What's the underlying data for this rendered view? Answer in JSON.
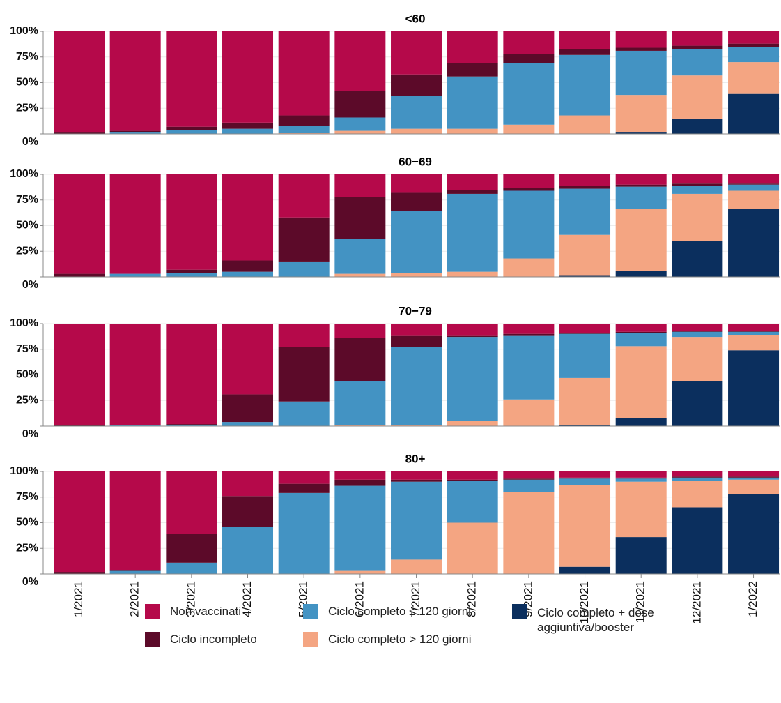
{
  "chart_data": [
    {
      "type": "bar",
      "stacked": true,
      "title": "<60",
      "ylim": [
        0,
        100
      ],
      "grid": true,
      "yticks": [
        {
          "value": 0,
          "label": "0%"
        },
        {
          "value": 25,
          "label": "25%"
        },
        {
          "value": 50,
          "label": "50%"
        },
        {
          "value": 75,
          "label": "75%"
        },
        {
          "value": 100,
          "label": "100%"
        }
      ],
      "series": [
        {
          "color": "#b5094a",
          "values": [
            98,
            97,
            93,
            89,
            82,
            58,
            42,
            31,
            22,
            17,
            16,
            14,
            12
          ]
        },
        {
          "color": "#5c0a29",
          "values": [
            2,
            1,
            3,
            6,
            10,
            26,
            21,
            13,
            9,
            6,
            3,
            3,
            3
          ]
        },
        {
          "color": "#4393c3",
          "values": [
            0,
            2,
            4,
            5,
            7,
            13,
            32,
            51,
            60,
            59,
            43,
            26,
            15
          ]
        },
        {
          "color": "#f4a582",
          "values": [
            0,
            0,
            0,
            0,
            1,
            3,
            5,
            5,
            9,
            18,
            36,
            42,
            31
          ]
        },
        {
          "color": "#0b2f5e",
          "values": [
            0,
            0,
            0,
            0,
            0,
            0,
            0,
            0,
            0,
            0,
            2,
            15,
            39
          ]
        }
      ]
    },
    {
      "type": "bar",
      "stacked": true,
      "title": "60−69",
      "ylim": [
        0,
        100
      ],
      "grid": true,
      "yticks": [
        {
          "value": 0,
          "label": "0%"
        },
        {
          "value": 25,
          "label": "25%"
        },
        {
          "value": 50,
          "label": "50%"
        },
        {
          "value": 75,
          "label": "75%"
        },
        {
          "value": 100,
          "label": "100%"
        }
      ],
      "series": [
        {
          "color": "#b5094a",
          "values": [
            97,
            97,
            93,
            84,
            42,
            22,
            18,
            15,
            13,
            11,
            10,
            9,
            9
          ]
        },
        {
          "color": "#5c0a29",
          "values": [
            3,
            0,
            3,
            11,
            43,
            41,
            18,
            4,
            3,
            3,
            2,
            2,
            1
          ]
        },
        {
          "color": "#4393c3",
          "values": [
            0,
            3,
            4,
            5,
            15,
            34,
            60,
            76,
            66,
            45,
            22,
            8,
            6
          ]
        },
        {
          "color": "#f4a582",
          "values": [
            0,
            0,
            0,
            0,
            0,
            3,
            4,
            5,
            18,
            40,
            60,
            46,
            18
          ]
        },
        {
          "color": "#0b2f5e",
          "values": [
            0,
            0,
            0,
            0,
            0,
            0,
            0,
            0,
            0,
            1,
            6,
            35,
            66
          ]
        }
      ]
    },
    {
      "type": "bar",
      "stacked": true,
      "title": "70−79",
      "ylim": [
        0,
        100
      ],
      "grid": true,
      "yticks": [
        {
          "value": 0,
          "label": "0%"
        },
        {
          "value": 25,
          "label": "25%"
        },
        {
          "value": 50,
          "label": "50%"
        },
        {
          "value": 75,
          "label": "75%"
        },
        {
          "value": 100,
          "label": "100%"
        }
      ],
      "series": [
        {
          "color": "#b5094a",
          "values": [
            99,
            99,
            98,
            69,
            23,
            14,
            12,
            12,
            10,
            9,
            8,
            7,
            7
          ]
        },
        {
          "color": "#5c0a29",
          "values": [
            1,
            0,
            1,
            27,
            53,
            42,
            11,
            1,
            2,
            1,
            1,
            1,
            1
          ]
        },
        {
          "color": "#4393c3",
          "values": [
            0,
            1,
            1,
            4,
            24,
            43,
            76,
            82,
            62,
            43,
            13,
            5,
            3
          ]
        },
        {
          "color": "#f4a582",
          "values": [
            0,
            0,
            0,
            0,
            0,
            1,
            1,
            5,
            26,
            46,
            70,
            43,
            15
          ]
        },
        {
          "color": "#0b2f5e",
          "values": [
            0,
            0,
            0,
            0,
            0,
            0,
            0,
            0,
            0,
            1,
            8,
            44,
            74
          ]
        }
      ]
    },
    {
      "type": "bar",
      "stacked": true,
      "title": "80+",
      "ylim": [
        0,
        100
      ],
      "grid": true,
      "yticks": [
        {
          "value": 0,
          "label": "0%"
        },
        {
          "value": 25,
          "label": "25%"
        },
        {
          "value": 50,
          "label": "50%"
        },
        {
          "value": 75,
          "label": "75%"
        },
        {
          "value": 100,
          "label": "100%"
        }
      ],
      "categories": [
        "1/2021",
        "2/2021",
        "3/2021",
        "4/2021",
        "5/2021",
        "6/2021",
        "7/2021",
        "8/2021",
        "9/2021",
        "10/2021",
        "11/2021",
        "12/2021",
        "1/2022"
      ],
      "series": [
        {
          "name": "Non vaccinati",
          "color": "#b5094a",
          "values": [
            98,
            96,
            61,
            24,
            12,
            8,
            8,
            8,
            7,
            6,
            6,
            5,
            5
          ]
        },
        {
          "name": "Ciclo incompleto",
          "color": "#5c0a29",
          "values": [
            2,
            1,
            28,
            30,
            9,
            6,
            2,
            1,
            1,
            1,
            1,
            1,
            1
          ]
        },
        {
          "name": "Ciclo completo ≤ 120 giorni",
          "color": "#4393c3",
          "values": [
            0,
            3,
            11,
            46,
            79,
            83,
            76,
            41,
            12,
            6,
            3,
            3,
            2
          ]
        },
        {
          "name": "Ciclo completo > 120 giorni",
          "color": "#f4a582",
          "values": [
            0,
            0,
            0,
            0,
            0,
            3,
            14,
            50,
            80,
            80,
            54,
            26,
            14
          ]
        },
        {
          "name": "Ciclo completo + dose aggiuntiva/booster",
          "color": "#0b2f5e",
          "values": [
            0,
            0,
            0,
            0,
            0,
            0,
            0,
            0,
            0,
            7,
            36,
            65,
            78
          ]
        }
      ]
    }
  ]
}
